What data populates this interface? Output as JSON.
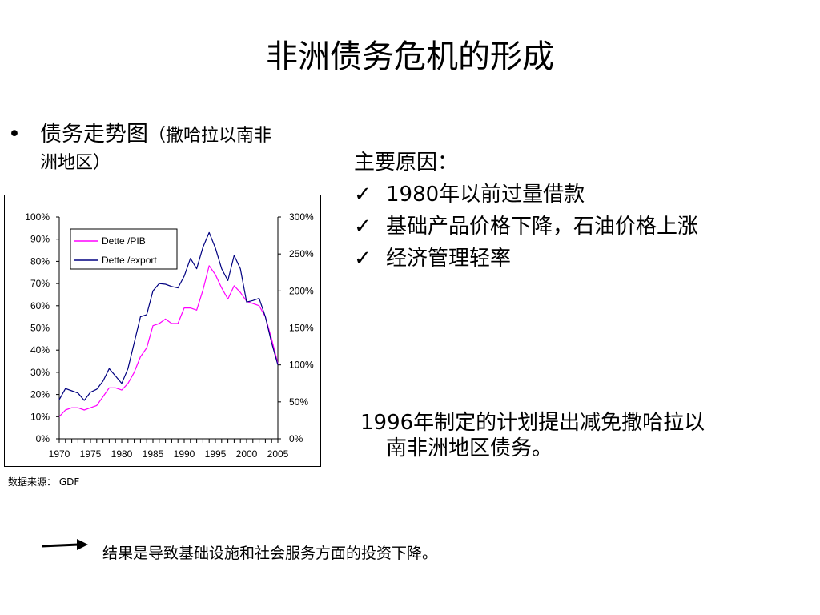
{
  "title": "非洲债务危机的形成",
  "left_bullet": {
    "bullet": "•",
    "main": "债务走势图",
    "sub_line1": "（撒哈拉以南非",
    "sub_line2": "洲地区）"
  },
  "source": "数据来源： GDF",
  "reasons": {
    "heading": "主要原因：",
    "check": "✓",
    "items": [
      "1980年以前过量借款",
      "基础产品价格下降，石油价格上涨",
      "经济管理轻率"
    ]
  },
  "plan": {
    "line1": "1996年制定的计划提出减免撒哈拉以",
    "line2": "南非洲地区债务。"
  },
  "result": "结果是导致基础设施和社会服务方面的投资下降。",
  "chart_data": {
    "type": "line",
    "x": [
      1970,
      1971,
      1972,
      1973,
      1974,
      1975,
      1976,
      1977,
      1978,
      1979,
      1980,
      1981,
      1982,
      1983,
      1984,
      1985,
      1986,
      1987,
      1988,
      1989,
      1990,
      1991,
      1992,
      1993,
      1994,
      1995,
      1996,
      1997,
      1998,
      1999,
      2000,
      2001,
      2002,
      2003,
      2004,
      2005
    ],
    "xticks": [
      1970,
      1975,
      1980,
      1985,
      1990,
      1995,
      2000,
      2005
    ],
    "series": [
      {
        "name": "Dette /PIB",
        "axis": "left",
        "color": "#ff00ff",
        "values": [
          10,
          13,
          14,
          14,
          13,
          14,
          15,
          19,
          23,
          23,
          22,
          25,
          30,
          37,
          41,
          51,
          52,
          54,
          52,
          52,
          59,
          59,
          58,
          67,
          78,
          74,
          68,
          63,
          69,
          66,
          62,
          61,
          60,
          55,
          45,
          34
        ]
      },
      {
        "name": "Dette /export",
        "axis": "right",
        "color": "#000080",
        "values": [
          53,
          68,
          65,
          62,
          52,
          63,
          67,
          78,
          95,
          85,
          75,
          95,
          130,
          165,
          168,
          200,
          210,
          209,
          206,
          204,
          220,
          244,
          230,
          259,
          279,
          258,
          230,
          214,
          248,
          230,
          185,
          187,
          190,
          165,
          130,
          100
        ]
      }
    ],
    "left_axis": {
      "ylim": [
        0,
        100
      ],
      "ticks": [
        "0%",
        "10%",
        "20%",
        "30%",
        "40%",
        "50%",
        "60%",
        "70%",
        "80%",
        "90%",
        "100%"
      ]
    },
    "right_axis": {
      "ylim": [
        0,
        300
      ],
      "ticks": [
        "0%",
        "50%",
        "100%",
        "150%",
        "200%",
        "250%",
        "300%"
      ]
    },
    "legend": "top-left",
    "grid": false
  }
}
